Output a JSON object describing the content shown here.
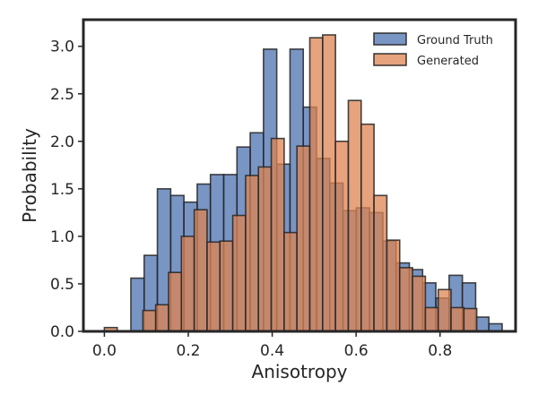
{
  "chart_data": {
    "type": "bar",
    "subtype": "overlaid-histogram",
    "title": "",
    "xlabel": "Anisotropy",
    "ylabel": "Probability",
    "xlim": [
      -0.05,
      0.98
    ],
    "ylim": [
      0,
      3.28
    ],
    "xticks": [
      0.0,
      0.2,
      0.4,
      0.6,
      0.8
    ],
    "xtick_labels": [
      "0.0",
      "0.2",
      "0.4",
      "0.6",
      "0.8"
    ],
    "yticks": [
      0.0,
      0.5,
      1.0,
      1.5,
      2.0,
      2.5,
      3.0
    ],
    "ytick_labels": [
      "0.0",
      "0.5",
      "1.0",
      "1.5",
      "2.0",
      "2.5",
      "3.0"
    ],
    "grid": false,
    "legend_position": "top-right",
    "series": [
      {
        "name": "Ground Truth",
        "color": "#4c72b0",
        "bin_edges": [
          0.0,
          0.0316,
          0.0632,
          0.0948,
          0.1264,
          0.158,
          0.1896,
          0.2212,
          0.2528,
          0.2844,
          0.316,
          0.3476,
          0.3792,
          0.4108,
          0.4424,
          0.474,
          0.5056,
          0.5372,
          0.5688,
          0.6004,
          0.632,
          0.6636,
          0.6952,
          0.7268,
          0.7584,
          0.79,
          0.8216,
          0.8532,
          0.8848,
          0.9164,
          0.948
        ],
        "values": [
          0.0,
          0.0,
          0.56,
          0.8,
          1.5,
          1.43,
          1.36,
          1.55,
          1.65,
          1.65,
          1.94,
          2.09,
          2.97,
          1.76,
          2.97,
          2.36,
          1.82,
          1.56,
          1.27,
          1.3,
          1.25,
          0.95,
          0.72,
          0.65,
          0.51,
          0.35,
          0.59,
          0.51,
          0.15,
          0.08
        ]
      },
      {
        "name": "Generated",
        "color": "#dd8452",
        "bin_edges": [
          0.0,
          0.0306,
          0.0612,
          0.0918,
          0.1224,
          0.153,
          0.1836,
          0.2142,
          0.2448,
          0.2754,
          0.306,
          0.3366,
          0.3672,
          0.3978,
          0.4284,
          0.459,
          0.4896,
          0.5202,
          0.5508,
          0.5814,
          0.612,
          0.6426,
          0.6732,
          0.7038,
          0.7344,
          0.765,
          0.7956,
          0.8262,
          0.8568,
          0.8874
        ],
        "values": [
          0.04,
          0.0,
          0.0,
          0.22,
          0.28,
          0.62,
          1.0,
          1.28,
          0.94,
          0.95,
          1.22,
          1.64,
          1.73,
          2.03,
          1.04,
          1.95,
          3.09,
          3.12,
          2.0,
          2.43,
          2.18,
          1.43,
          0.96,
          0.67,
          0.58,
          0.25,
          0.44,
          0.25,
          0.24
        ]
      }
    ]
  }
}
